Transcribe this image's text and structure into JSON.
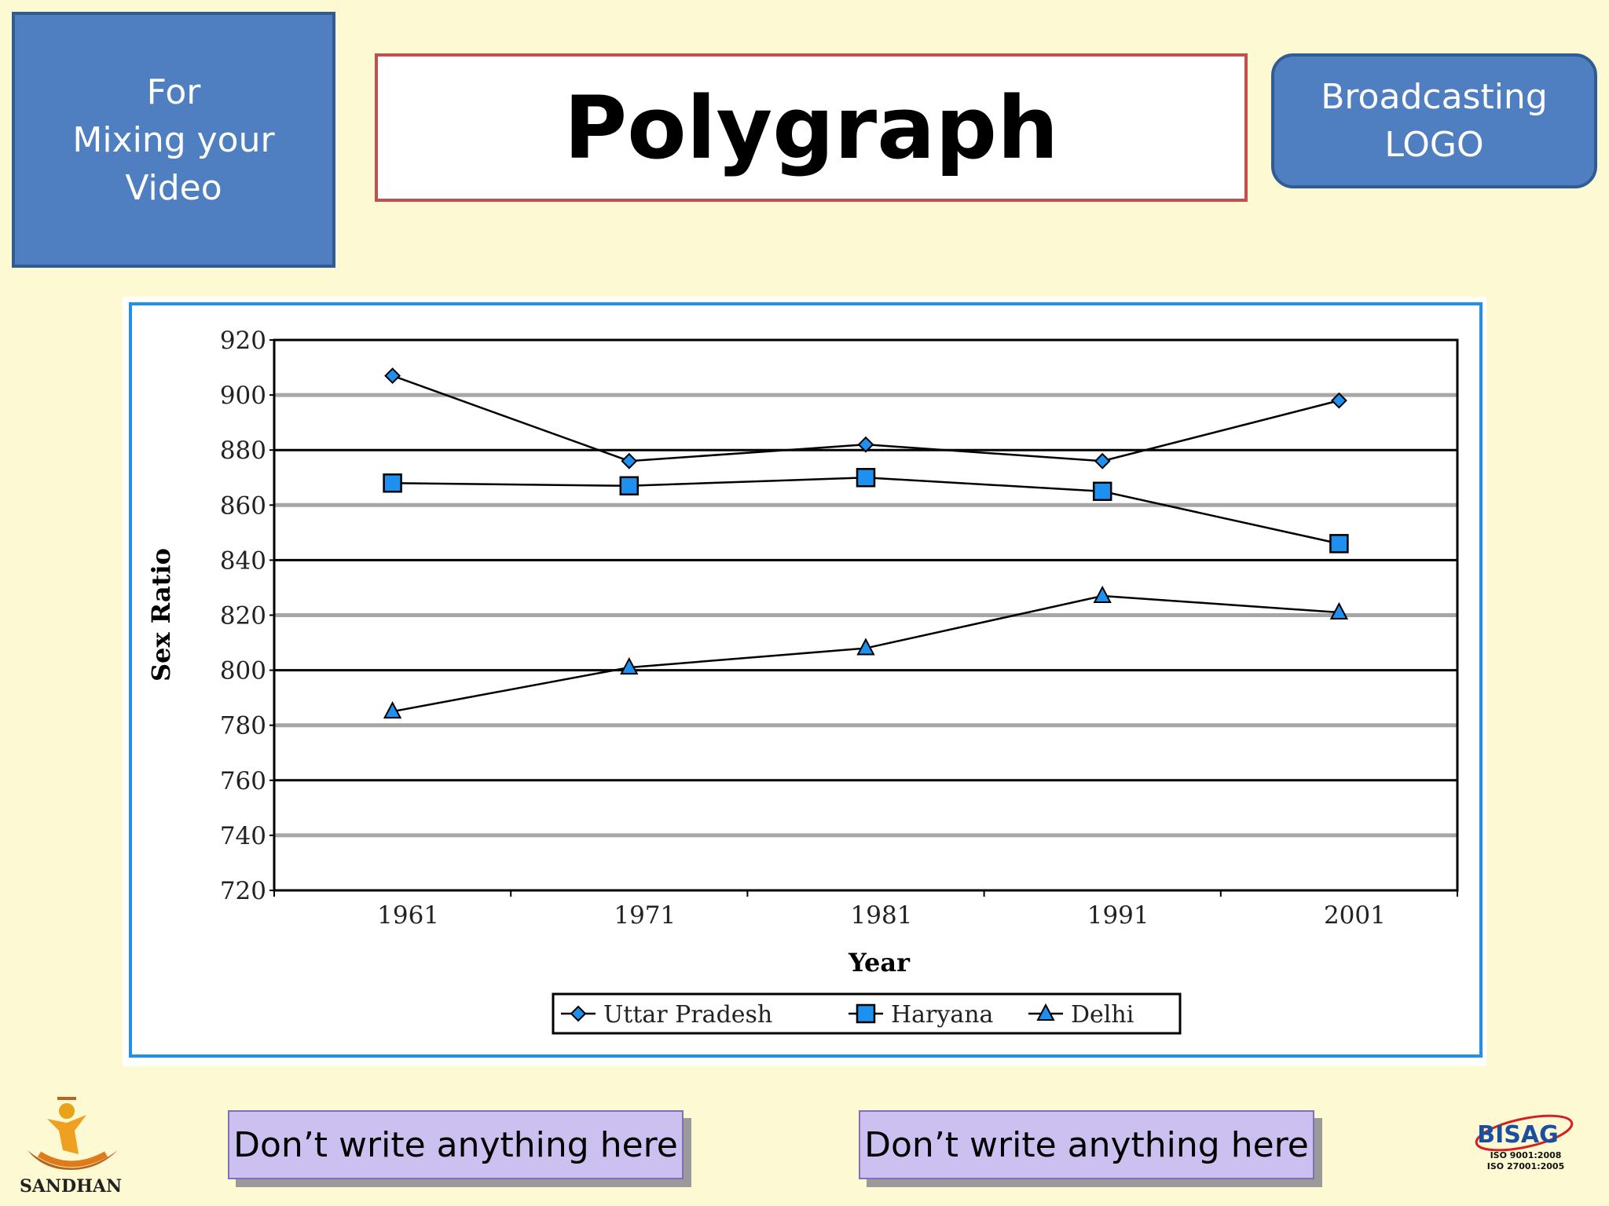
{
  "header": {
    "mix_box": {
      "line1": "For",
      "line2": "Mixing your",
      "line3": "Video"
    },
    "title": "Polygraph",
    "logo_box": {
      "line1": "Broadcasting",
      "line2": "LOGO"
    }
  },
  "chart_data": {
    "type": "line",
    "title": "",
    "xlabel": "Year",
    "ylabel": "Sex Ratio",
    "categories": [
      "1961",
      "1971",
      "1981",
      "1991",
      "2001"
    ],
    "ylim": [
      720,
      920
    ],
    "yticks": [
      920,
      900,
      880,
      860,
      840,
      820,
      800,
      780,
      760,
      740,
      720
    ],
    "series": [
      {
        "name": "Uttar Pradesh",
        "marker": "diamond",
        "values": [
          907,
          876,
          882,
          876,
          898
        ]
      },
      {
        "name": "Haryana",
        "marker": "square",
        "values": [
          868,
          867,
          870,
          865,
          846
        ]
      },
      {
        "name": "Delhi",
        "marker": "triangle",
        "values": [
          785,
          801,
          808,
          827,
          821
        ]
      }
    ],
    "legend_position": "bottom",
    "grid": true,
    "colors": {
      "marker_fill": "#1e90f0",
      "line": "#000000",
      "frame": "#1e90f0"
    }
  },
  "footer": {
    "left_note": "Don’t write anything here",
    "right_note": "Don’t write anything here",
    "sandhan_logo": {
      "text": "SANDHAN",
      "icon": "sandhan-logo-icon"
    },
    "bisag_logo": {
      "text": "BISAG",
      "iso1": "ISO  9001:2008",
      "iso2": "ISO 27001:2005",
      "icon": "bisag-logo-icon"
    }
  }
}
